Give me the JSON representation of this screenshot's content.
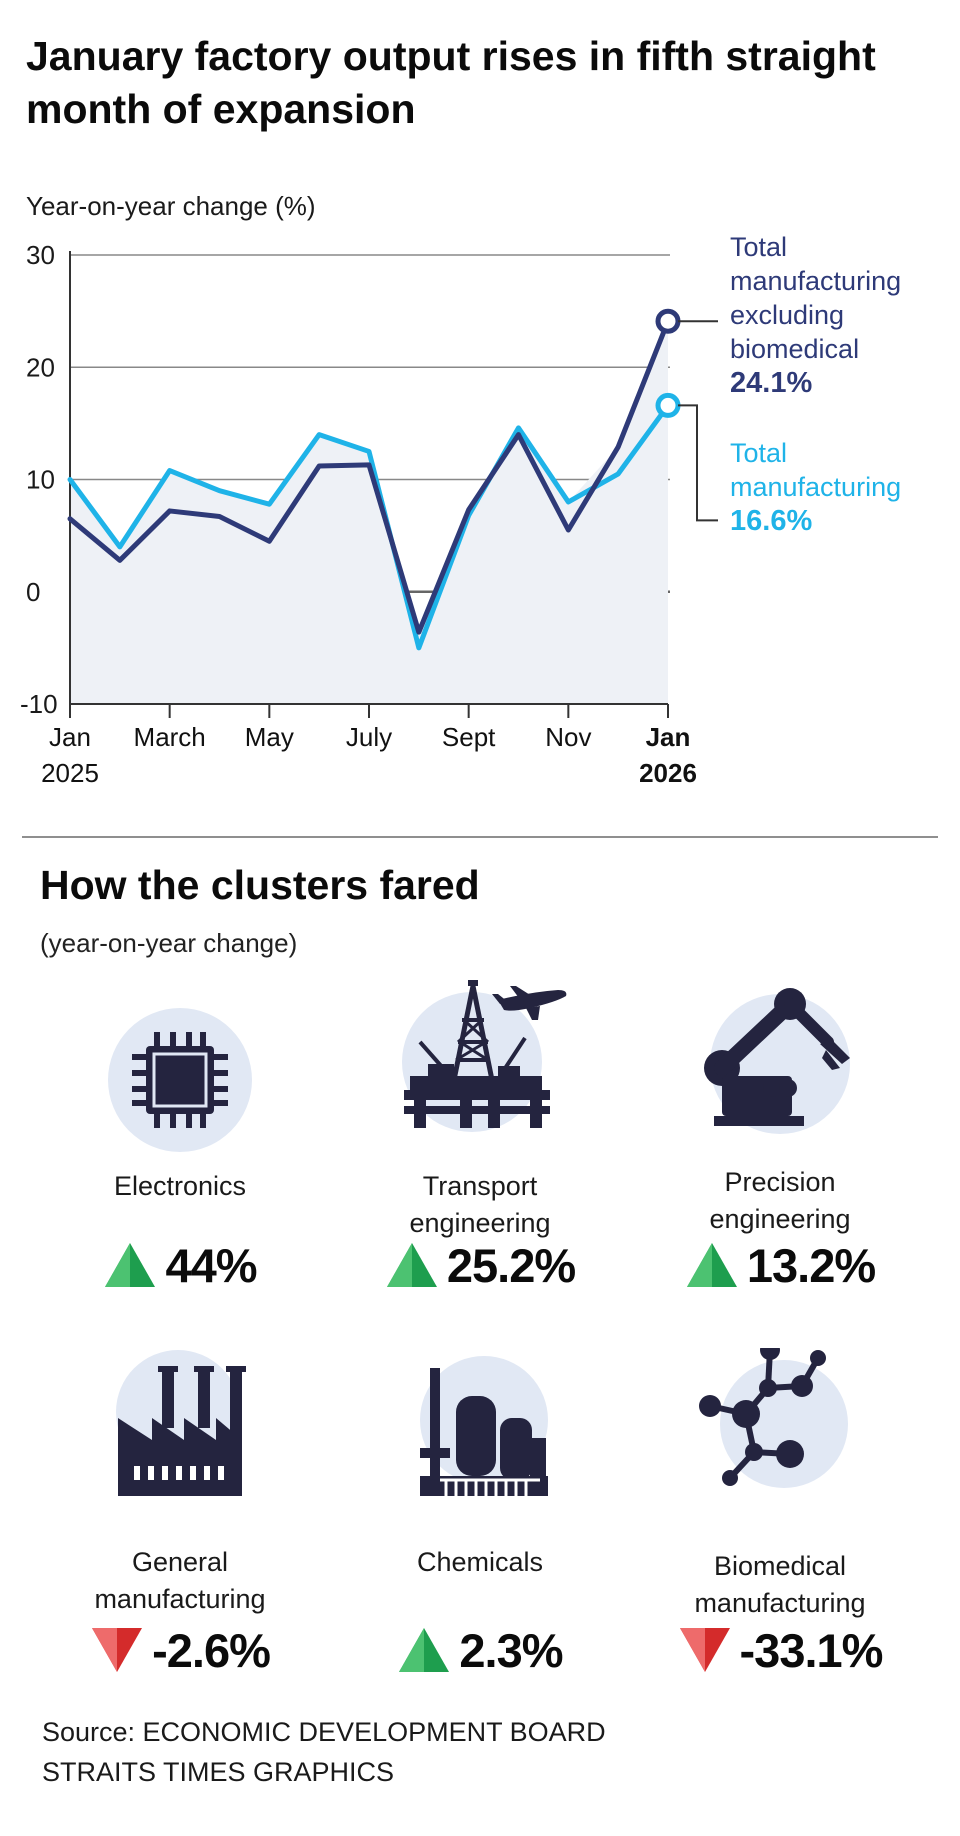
{
  "headline": "January factory output rises in fifth straight month of expansion",
  "chart_data": {
    "type": "line",
    "ylabel": "Year-on-year change (%)",
    "ylim": [
      -10,
      30
    ],
    "yticks": [
      30,
      20,
      10,
      0,
      -10
    ],
    "x": [
      "Jan 2025",
      "Feb 2025",
      "Mar 2025",
      "Apr 2025",
      "May 2025",
      "Jun 2025",
      "Jul 2025",
      "Aug 2025",
      "Sep 2025",
      "Oct 2025",
      "Nov 2025",
      "Dec 2025",
      "Jan 2026"
    ],
    "tick_labels": [
      {
        "index": 0,
        "line1": "Jan",
        "line2": "2025",
        "bold": false
      },
      {
        "index": 2,
        "line1": "March",
        "line2": "",
        "bold": false
      },
      {
        "index": 4,
        "line1": "May",
        "line2": "",
        "bold": false
      },
      {
        "index": 6,
        "line1": "July",
        "line2": "",
        "bold": false
      },
      {
        "index": 8,
        "line1": "Sept",
        "line2": "",
        "bold": false
      },
      {
        "index": 10,
        "line1": "Nov",
        "line2": "",
        "bold": false
      },
      {
        "index": 12,
        "line1": "Jan",
        "line2": "2026",
        "bold": true
      }
    ],
    "series": [
      {
        "name": "Total manufacturing excluding biomedical",
        "color": "#2e3a78",
        "values": [
          6.5,
          2.8,
          7.2,
          6.7,
          4.5,
          11.2,
          11.3,
          -3.6,
          7.3,
          14.0,
          5.5,
          12.9,
          24.1
        ],
        "label_lines": [
          "Total",
          "manufacturing",
          "excluding",
          "biomedical"
        ],
        "label_value": "24.1%"
      },
      {
        "name": "Total manufacturing",
        "color": "#1fb3e8",
        "values": [
          10.0,
          4.0,
          10.8,
          9.0,
          7.8,
          14.0,
          12.5,
          -5.0,
          6.8,
          14.6,
          8.0,
          10.5,
          16.6
        ],
        "label_lines": [
          "Total",
          "manufacturing"
        ],
        "label_value": "16.6%"
      }
    ]
  },
  "clusters_title": "How the clusters fared",
  "clusters_subtitle": "(year-on-year change)",
  "clusters": [
    {
      "name_lines": [
        "Electronics"
      ],
      "change": "44%",
      "direction": "up",
      "icon": "chip-icon"
    },
    {
      "name_lines": [
        "Transport",
        "engineering"
      ],
      "change": "25.2%",
      "direction": "up",
      "icon": "oil-rig-airplane-icon"
    },
    {
      "name_lines": [
        "Precision",
        "engineering"
      ],
      "change": "13.2%",
      "direction": "up",
      "icon": "robotic-arm-icon"
    },
    {
      "name_lines": [
        "General",
        "manufacturing"
      ],
      "change": "-2.6%",
      "direction": "down",
      "icon": "factory-icon"
    },
    {
      "name_lines": [
        "Chemicals"
      ],
      "change": "2.3%",
      "direction": "up",
      "icon": "chemical-plant-icon"
    },
    {
      "name_lines": [
        "Biomedical",
        "manufacturing"
      ],
      "change": "-33.1%",
      "direction": "down",
      "icon": "molecule-icon"
    }
  ],
  "source_line1": "Source: ECONOMIC DEVELOPMENT BOARD",
  "source_line2": "STRAITS TIMES GRAPHICS",
  "colors": {
    "navy": "#2e3a78",
    "cyan": "#1fb3e8",
    "icon_dark": "#24243f",
    "icon_circle": "#e1e8f4",
    "up": "#1e9e4e",
    "down": "#d42b2b"
  }
}
